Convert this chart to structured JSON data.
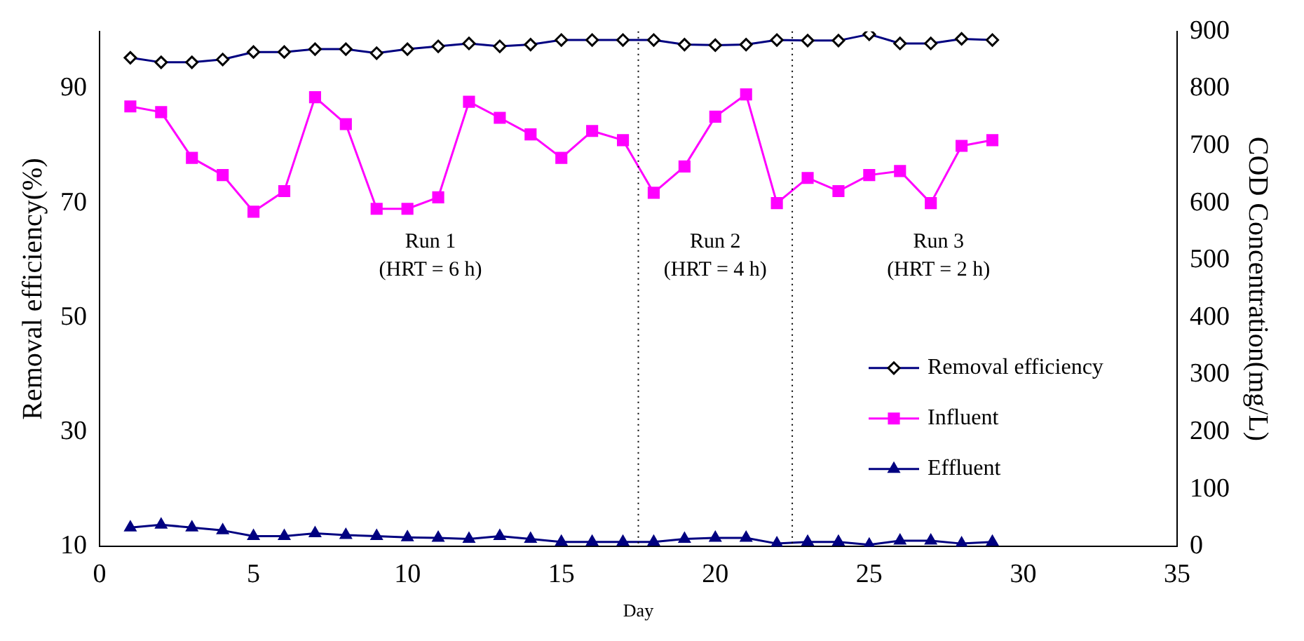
{
  "chart_data": {
    "type": "line",
    "xlabel": "Day",
    "ylabel": "Removal efficiency(%)",
    "y2label": "COD Concentration(mg/L)",
    "x": [
      1,
      2,
      3,
      4,
      5,
      6,
      7,
      8,
      9,
      10,
      11,
      12,
      13,
      14,
      15,
      16,
      17,
      18,
      19,
      20,
      21,
      22,
      23,
      24,
      25,
      26,
      27,
      28,
      29
    ],
    "series": [
      {
        "name": "Removal efficiency",
        "color": "#000080",
        "marker": "diamond",
        "values": [
          95.4,
          94.6,
          94.6,
          95.1,
          96.4,
          96.4,
          96.9,
          96.9,
          96.2,
          96.9,
          97.4,
          97.9,
          97.4,
          97.7,
          98.5,
          98.5,
          98.5,
          98.5,
          97.7,
          97.6,
          97.7,
          98.5,
          98.4,
          98.4,
          99.5,
          97.9,
          97.9,
          98.7,
          98.5
        ]
      },
      {
        "name": "Influent",
        "color": "#ff00ff",
        "marker": "square",
        "axis": "y2",
        "values": [
          769,
          759,
          679,
          649,
          585,
          621,
          785,
          738,
          590,
          590,
          610,
          777,
          749,
          720,
          679,
          726,
          710,
          618,
          664,
          751,
          790,
          600,
          644,
          621,
          649,
          656,
          600,
          700,
          710
        ]
      },
      {
        "name": "Effluent",
        "color": "#000080",
        "marker": "triangle",
        "axis": "y2",
        "values": [
          33,
          38,
          33,
          28,
          18,
          18,
          23,
          20,
          18,
          16,
          15,
          13,
          18,
          13,
          8,
          8,
          8,
          8,
          13,
          15,
          15,
          5,
          8,
          8,
          3,
          10,
          10,
          5,
          8
        ]
      }
    ],
    "xlim": [
      0,
      35
    ],
    "xticks": [
      0,
      5,
      10,
      15,
      20,
      25,
      30,
      35
    ],
    "ylim": [
      10,
      100
    ],
    "yticks": [
      10,
      30,
      50,
      70,
      90
    ],
    "y2lim": [
      0,
      900
    ],
    "y2ticks": [
      0,
      100,
      200,
      300,
      400,
      500,
      600,
      700,
      800,
      900
    ],
    "ref_lines": [
      {
        "axis": "x",
        "value": 17.5,
        "line_style": "dotted",
        "color": "#000000"
      },
      {
        "axis": "x",
        "value": 22.5,
        "line_style": "dotted",
        "color": "#000000"
      }
    ],
    "annotations": [
      "Run 1\n(HRT = 6 h)",
      "Run 2\n(HRT = 4 h)",
      "Run 3\n(HRT = 2 h)"
    ],
    "legend": "right",
    "grid": false
  }
}
